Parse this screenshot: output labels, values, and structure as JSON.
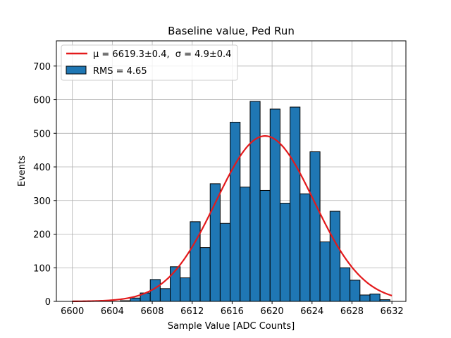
{
  "chart_data": {
    "type": "bar",
    "title": "Baseline value, Ped Run",
    "xlabel": "Sample Value [ADC Counts]",
    "ylabel": "Events",
    "xlim": [
      5598.4,
      6633.4
    ],
    "ylim": [
      0,
      775
    ],
    "xticks": [
      6600,
      6604,
      6608,
      6612,
      6616,
      6620,
      6624,
      6628,
      6632
    ],
    "xtick_labels": [
      "6600",
      "6604",
      "6608",
      "6612",
      "6616",
      "6620",
      "6624",
      "6628",
      "6632"
    ],
    "yticks": [
      0,
      100,
      200,
      300,
      400,
      500,
      600,
      700
    ],
    "ytick_labels": [
      "0",
      "100",
      "200",
      "300",
      "400",
      "500",
      "600",
      "700"
    ],
    "grid": true,
    "legend_position": "top-left",
    "histogram": {
      "name": "RMS = 4.65",
      "color": "#1f77b4",
      "edge_color": "#000000",
      "bin_edges": [
        6604.8,
        6605.8,
        6606.8,
        6607.8,
        6608.8,
        6609.8,
        6610.8,
        6611.8,
        6612.8,
        6613.8,
        6614.8,
        6615.8,
        6616.8,
        6617.8,
        6618.8,
        6619.8,
        6620.8,
        6621.8,
        6622.8,
        6623.8,
        6624.8,
        6625.8,
        6626.8,
        6627.8,
        6628.8,
        6629.8,
        6630.8,
        6631.8
      ],
      "counts": [
        2,
        10,
        25,
        65,
        38,
        103,
        70,
        237,
        160,
        350,
        232,
        533,
        340,
        595,
        330,
        572,
        292,
        578,
        320,
        445,
        177,
        268,
        100,
        63,
        19,
        22,
        5
      ]
    },
    "fit": {
      "name": "μ = 6619.3±0.4, σ = 4.9±0.4",
      "mu_label": "μ = 6619.3±0.4,",
      "sigma_label": "σ = 4.9±0.4",
      "color": "#e31a1c",
      "mu": 6619.3,
      "sigma": 4.9,
      "amplitude": 492,
      "x_range": [
        6600,
        6632
      ]
    }
  }
}
